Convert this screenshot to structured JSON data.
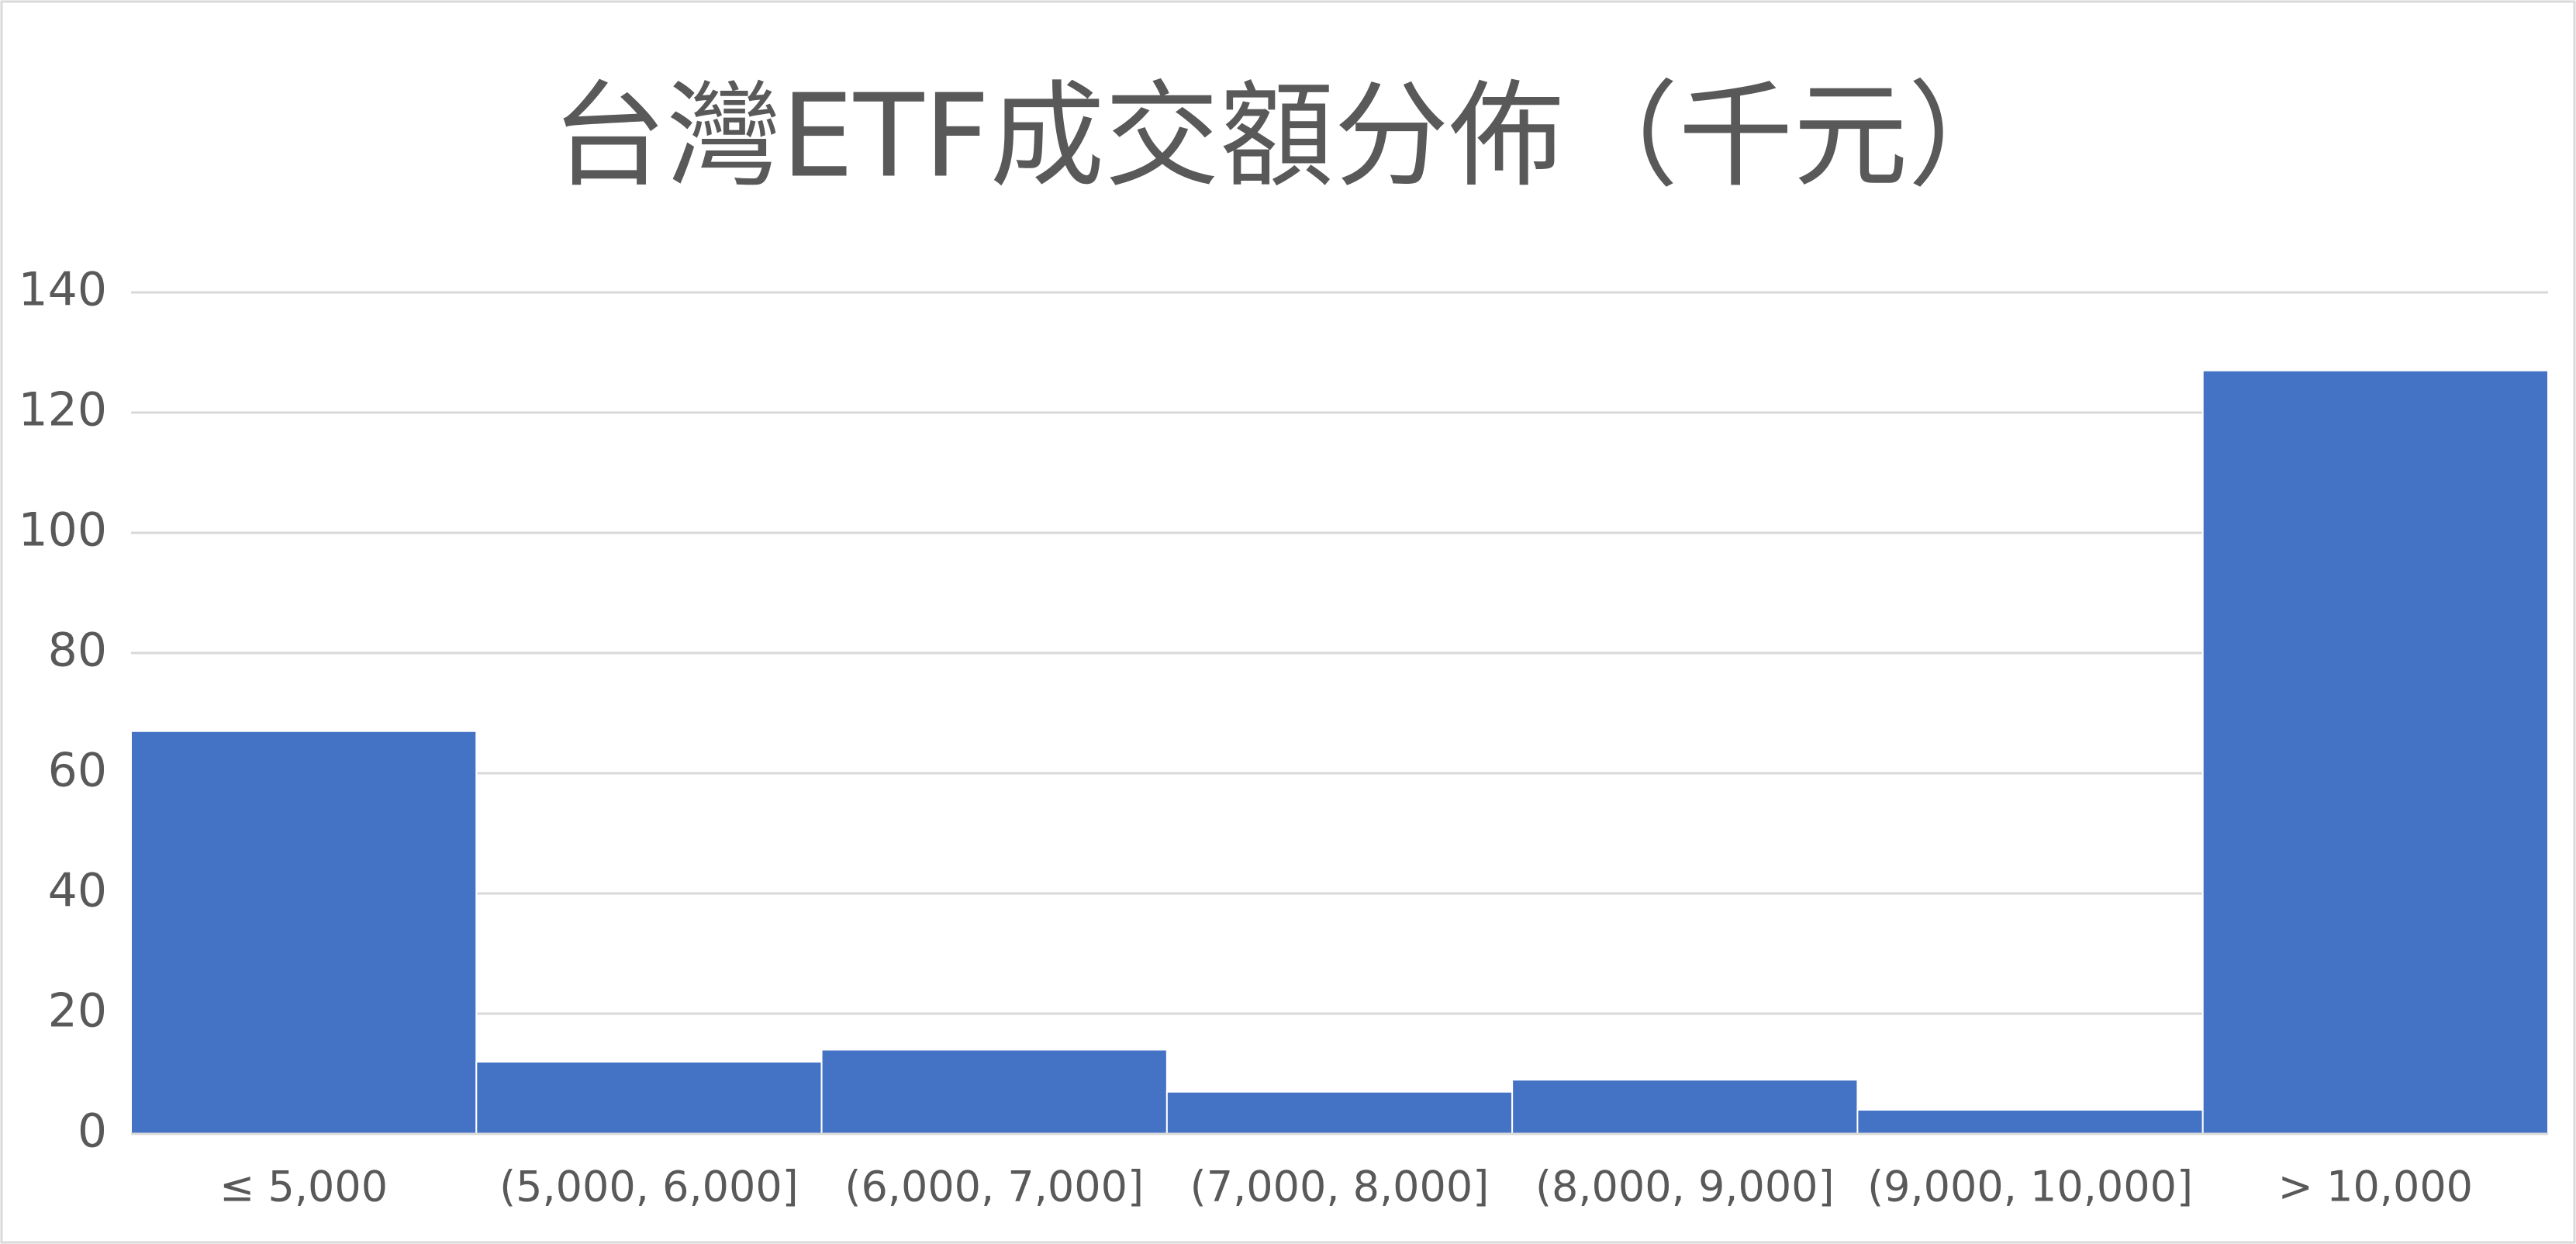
{
  "chart_data": {
    "type": "bar",
    "title": "台灣ETF成交額分佈（千元）",
    "categories": [
      "≤ 5,000",
      "(5,000, 6,000]",
      "(6,000, 7,000]",
      "(7,000, 8,000]",
      "(8,000, 9,000]",
      "(9,000, 10,000]",
      "> 10,000"
    ],
    "values": [
      67,
      12,
      14,
      7,
      9,
      4,
      127
    ],
    "color": "#4472c4",
    "ylim": [
      0,
      140
    ],
    "yticks": [
      0,
      20,
      40,
      60,
      80,
      100,
      120,
      140
    ],
    "grid": true
  }
}
